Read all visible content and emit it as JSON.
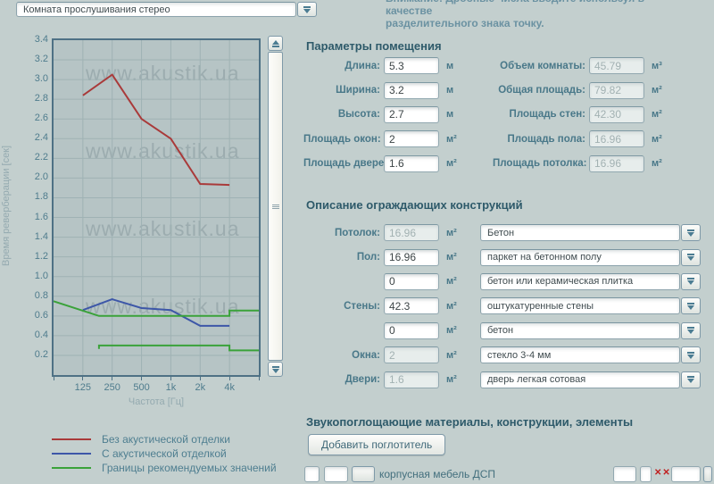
{
  "header": {
    "room_type_select": {
      "value": "Комната прослушивания стерео"
    },
    "notice": {
      "line1": "Внимание! Дробные числа вводите используя в качестве",
      "line2": "разделительного знака точку."
    }
  },
  "chart_data": {
    "type": "line",
    "xlabel": "Частота [Гц]",
    "ylabel": "Время реверберации [сек]",
    "x_tick_labels": [
      "125",
      "250",
      "500",
      "1k",
      "2k",
      "4k"
    ],
    "x_total_octaves": 7,
    "ylim": [
      0,
      3.4
    ],
    "y_tick_step": 0.2,
    "grid": true,
    "watermark": "www.akustik.ua",
    "series": [
      {
        "name": "Без акустической отделки",
        "color": "#a93a3a",
        "x_oct": [
          1,
          2,
          3,
          4,
          5,
          6
        ],
        "y": [
          2.84,
          3.05,
          2.6,
          2.4,
          1.94,
          1.93
        ]
      },
      {
        "name": "С акустической отделкой",
        "color": "#3d57a8",
        "x_oct": [
          1,
          2,
          3,
          4,
          5,
          6
        ],
        "y": [
          0.66,
          0.77,
          0.68,
          0.66,
          0.5,
          0.5
        ]
      },
      {
        "name": "Границы рекомендуемых значений (верхняя)",
        "color": "#3aa23a",
        "x_oct": [
          0,
          1.55,
          6,
          6,
          7
        ],
        "y": [
          0.75,
          0.6,
          0.6,
          0.655,
          0.655
        ]
      },
      {
        "name": "Границы рекомендуемых значений (нижняя)",
        "color": "#3aa23a",
        "x_oct": [
          1.55,
          1.55,
          6,
          6,
          7
        ],
        "y": [
          0.265,
          0.3,
          0.3,
          0.25,
          0.25
        ]
      }
    ],
    "legend_position": "bottom-left",
    "legend": [
      {
        "color": "#a93a3a",
        "label": "Без акустической отделки"
      },
      {
        "color": "#3d57a8",
        "label": "С акустической отделкой"
      },
      {
        "color": "#3aa23a",
        "label": "Границы рекомендуемых значений"
      }
    ]
  },
  "room_params": {
    "title": "Параметры помещения",
    "left": [
      {
        "label": "Длина:",
        "value": "5.3",
        "unit": "м",
        "readonly": false
      },
      {
        "label": "Ширина:",
        "value": "3.2",
        "unit": "м",
        "readonly": false
      },
      {
        "label": "Высота:",
        "value": "2.7",
        "unit": "м",
        "readonly": false
      },
      {
        "label": "Площадь окон:",
        "value": "2",
        "unit": "м²",
        "readonly": false
      },
      {
        "label": "Площадь дверей:",
        "value": "1.6",
        "unit": "м²",
        "readonly": false
      }
    ],
    "right": [
      {
        "label": "Объем комнаты:",
        "value": "45.79",
        "unit": "м³",
        "readonly": true
      },
      {
        "label": "Общая площадь:",
        "value": "79.82",
        "unit": "м²",
        "readonly": true
      },
      {
        "label": "Площадь стен:",
        "value": "42.30",
        "unit": "м²",
        "readonly": true
      },
      {
        "label": "Площадь пола:",
        "value": "16.96",
        "unit": "м²",
        "readonly": true
      },
      {
        "label": "Площадь потолка:",
        "value": "16.96",
        "unit": "м²",
        "readonly": true
      }
    ]
  },
  "constructions": {
    "title": "Описание ограждающих конструкций",
    "unit": "м²",
    "rows": [
      {
        "label": "Потолок:",
        "area": "16.96",
        "readonly": true,
        "material": "Бетон"
      },
      {
        "label": "Пол:",
        "area": "16.96",
        "readonly": false,
        "material": "паркет на бетонном полу"
      },
      {
        "label": "",
        "area": "0",
        "readonly": false,
        "material": "бетон или керамическая плитка"
      },
      {
        "label": "Стены:",
        "area": "42.3",
        "readonly": false,
        "material": "оштукатуренные стены"
      },
      {
        "label": "",
        "area": "0",
        "readonly": false,
        "material": "бетон"
      },
      {
        "label": "Окна:",
        "area": "2",
        "readonly": true,
        "material": "стекло 3-4 мм"
      },
      {
        "label": "Двери:",
        "area": "1.6",
        "readonly": true,
        "material": "дверь легкая сотовая"
      }
    ]
  },
  "absorbers": {
    "title": "Звукопоглощающие материалы, конструкции, элементы",
    "add_button": "Добавить поглотитель",
    "partial_row": {
      "material": "корпусная мебель ДСП",
      "delete_icon": "✕✕"
    }
  },
  "colors": {
    "background": "#c3cfce",
    "plot_background": "#b6c4c5",
    "plot_border": "#4e7185",
    "grid_line": "#9fb2b4",
    "heading_text": "#2e5a6a",
    "label_text": "#497889"
  }
}
